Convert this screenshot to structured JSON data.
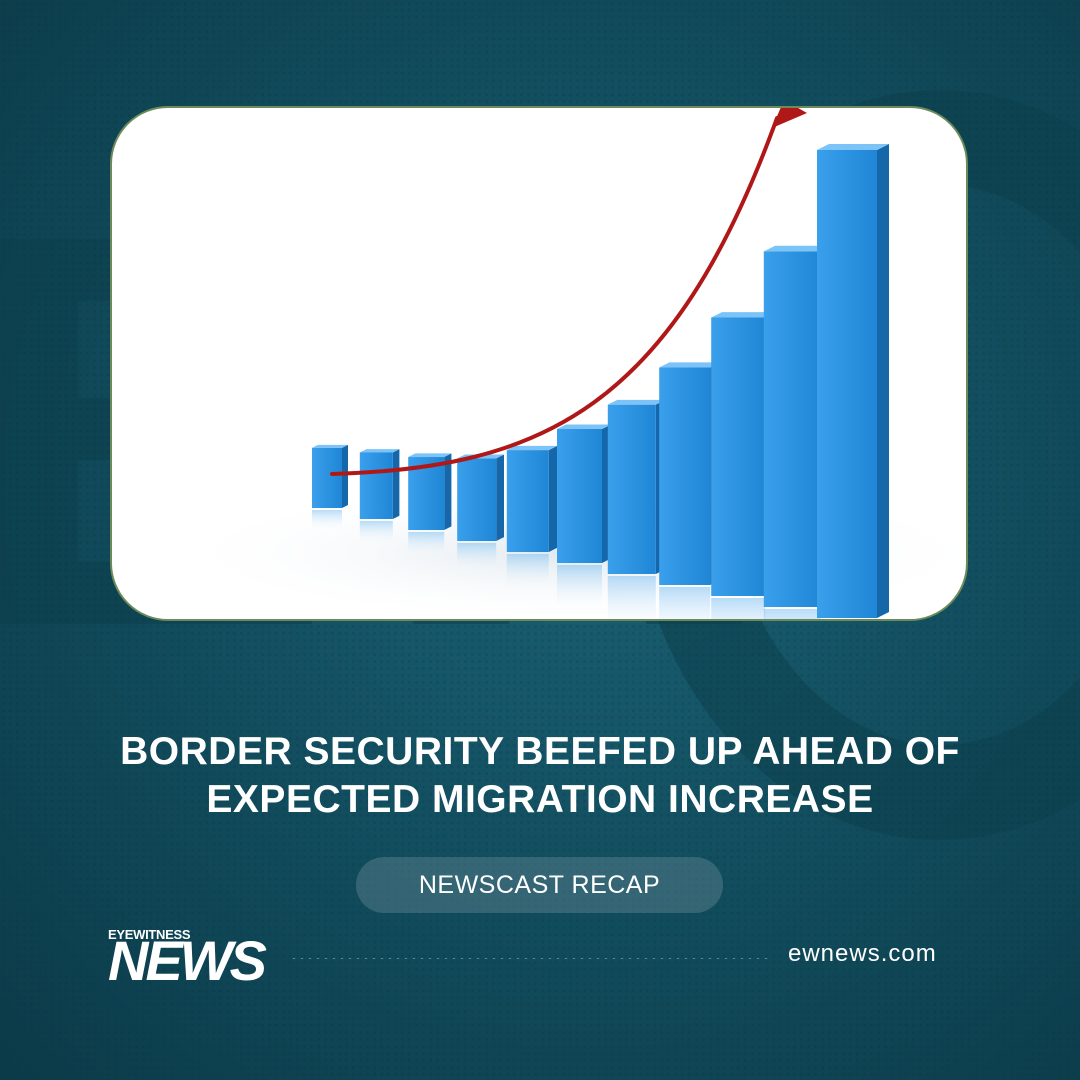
{
  "headline": {
    "line1": "BORDER SECURITY BEEFED UP AHEAD OF",
    "line2": "EXPECTED MIGRATION INCREASE"
  },
  "badge": {
    "label": "NEWSCAST RECAP"
  },
  "logo": {
    "small": "EYEWITNESS",
    "big": "NEWS"
  },
  "footer": {
    "site": "ewnews.com"
  },
  "illustration": {
    "description_icon": "rising-bar-chart-illustration",
    "bar_levels": [
      1,
      1.2,
      1.4,
      1.7,
      2.3,
      3.3,
      4.4,
      5.9,
      7.8,
      10.2,
      13.7
    ],
    "bar_color": "#2a8fdf",
    "arrow_color": "#b01818"
  },
  "colors": {
    "background": "#124f60",
    "card": "#ffffff",
    "text": "#ffffff"
  }
}
